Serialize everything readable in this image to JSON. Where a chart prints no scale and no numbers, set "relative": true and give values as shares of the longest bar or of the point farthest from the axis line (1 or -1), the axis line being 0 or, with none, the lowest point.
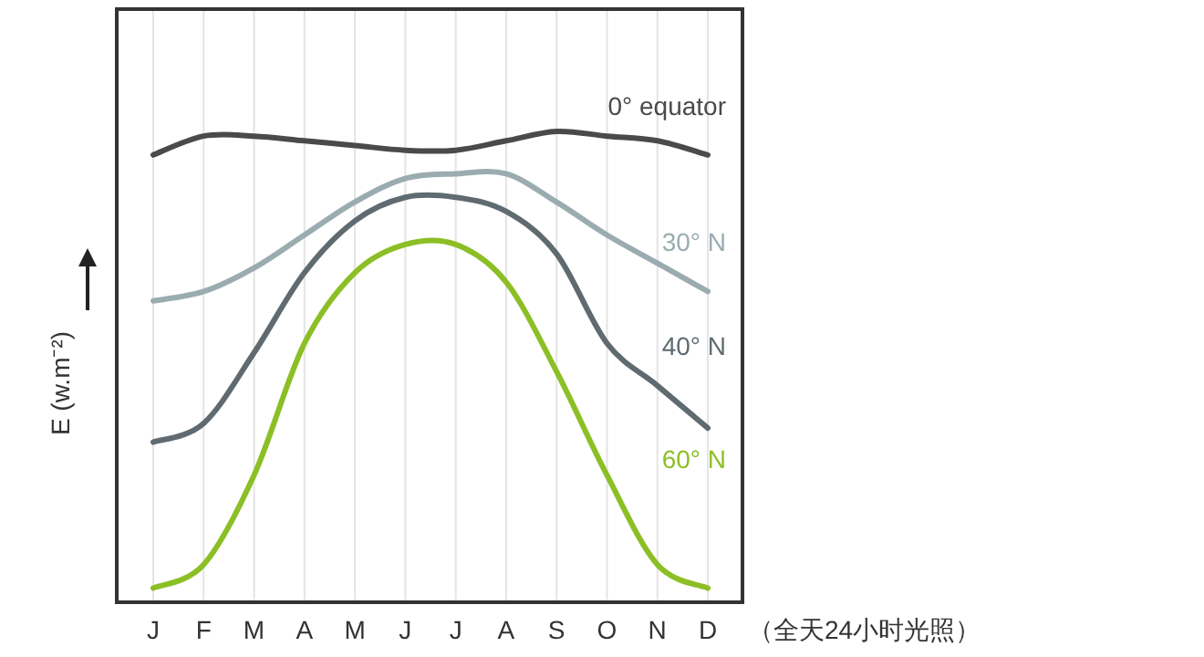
{
  "chart_data": {
    "type": "line",
    "relative": true,
    "grid": "x",
    "ylabel": "E (w.m⁻²)",
    "annotations": [
      "（全天24小时光照）"
    ],
    "categories": [
      "J",
      "F",
      "M",
      "A",
      "M",
      "J",
      "J",
      "A",
      "S",
      "O",
      "N",
      "D"
    ],
    "series": [
      {
        "name": "0° equator",
        "color": "#4a4a4a",
        "values": [
          0.95,
          0.99,
          0.99,
          0.98,
          0.97,
          0.96,
          0.96,
          0.98,
          1.0,
          0.99,
          0.98,
          0.95
        ]
      },
      {
        "name": "30° N",
        "color": "#9aacb0",
        "values": [
          0.64,
          0.66,
          0.71,
          0.78,
          0.85,
          0.9,
          0.91,
          0.91,
          0.85,
          0.78,
          0.72,
          0.66
        ]
      },
      {
        "name": "40° N",
        "color": "#5f6b70",
        "values": [
          0.34,
          0.38,
          0.53,
          0.7,
          0.81,
          0.86,
          0.86,
          0.83,
          0.74,
          0.55,
          0.46,
          0.37
        ]
      },
      {
        "name": "60° N",
        "color": "#8cbf26",
        "values": [
          0.03,
          0.08,
          0.27,
          0.55,
          0.7,
          0.76,
          0.76,
          0.68,
          0.49,
          0.27,
          0.08,
          0.03
        ]
      }
    ]
  }
}
